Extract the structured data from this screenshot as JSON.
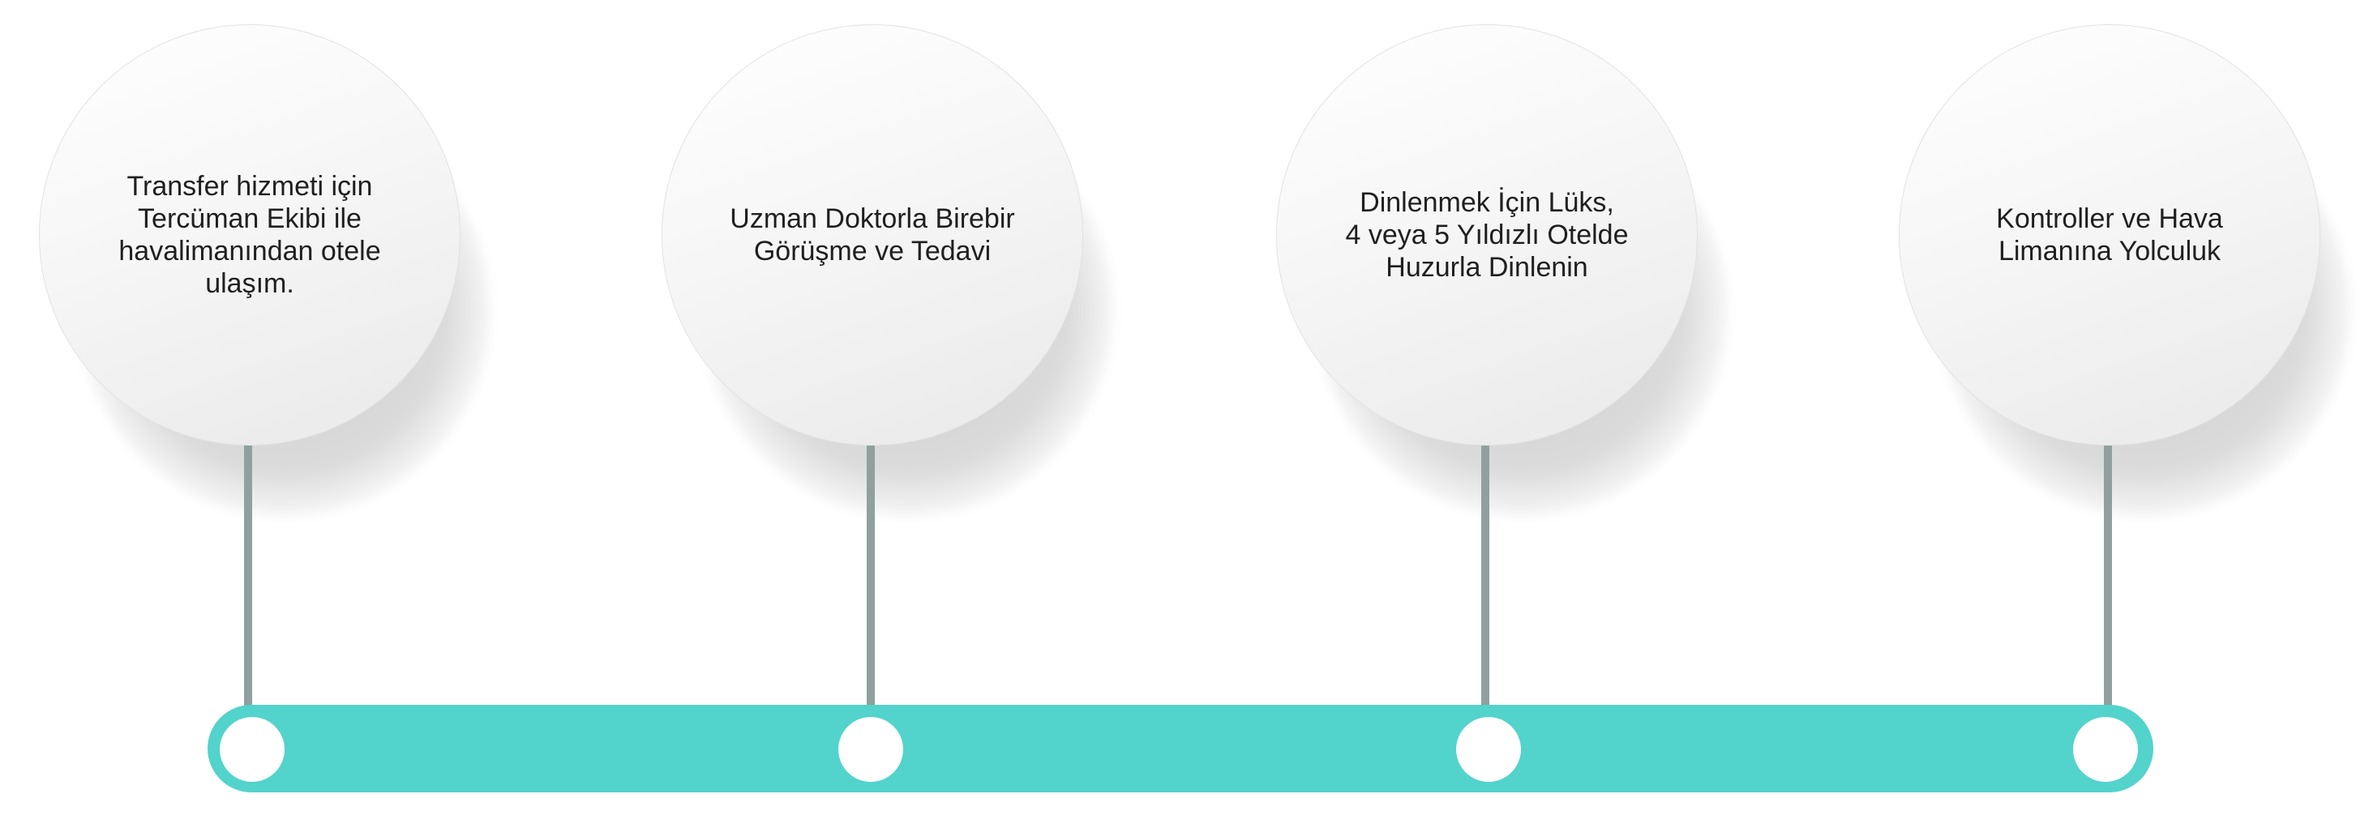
{
  "colors": {
    "timeline": "#52d3cc",
    "connector": "#8fa09f",
    "dot": "#ffffff",
    "text": "#1f1f1f"
  },
  "steps": [
    {
      "text": "Transfer hizmeti için\nTercüman Ekibi ile\nhavalimanından otele\nulaşım."
    },
    {
      "text": "Uzman Doktorla Birebir\nGörüşme ve Tedavi"
    },
    {
      "text": "Dinlenmek İçin Lüks,\n4 veya 5 Yıldızlı Otelde\nHuzurla Dinlenin"
    },
    {
      "text": "Kontroller ve Hava\nLimanına Yolculuk"
    }
  ]
}
